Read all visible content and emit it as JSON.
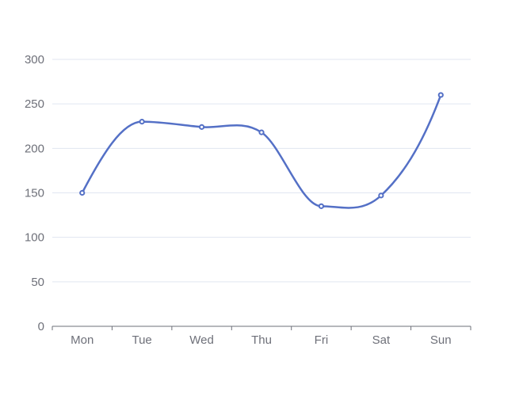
{
  "chart_data": {
    "type": "line",
    "smooth": true,
    "categories": [
      "Mon",
      "Tue",
      "Wed",
      "Thu",
      "Fri",
      "Sat",
      "Sun"
    ],
    "series": [
      {
        "values": [
          150,
          230,
          224,
          218,
          135,
          147,
          260
        ]
      }
    ],
    "ylim": [
      0,
      300
    ],
    "yticks": [
      0,
      50,
      100,
      150,
      200,
      250,
      300
    ],
    "grid": true,
    "legend": "none",
    "colors": {
      "series": "#5470c6",
      "axis": "#6e7079",
      "grid": "#e0e6f1"
    }
  }
}
